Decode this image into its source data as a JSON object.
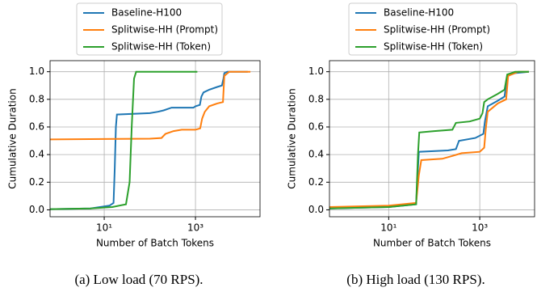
{
  "chart_data": [
    {
      "type": "line",
      "caption": "(a) Low load (70 RPS).",
      "xlabel": "Number of Batch Tokens",
      "ylabel": "Cumulative Duration",
      "xscale": "log",
      "grid": true,
      "legend": "top",
      "xlim": [
        0.65,
        26000
      ],
      "ylim": [
        -0.05,
        1.08
      ],
      "xticks": [
        {
          "value": 10,
          "label": "10¹"
        },
        {
          "value": 1000,
          "label": "10³"
        }
      ],
      "yticks": [
        {
          "value": 0,
          "label": "0.0"
        },
        0.2,
        0.4,
        0.6,
        0.8,
        {
          "value": 1,
          "label": "1.0"
        }
      ],
      "series": [
        {
          "name": "Baseline-H100",
          "color": "#1f77b4",
          "x": [
            0.65,
            5,
            13,
            16,
            17,
            18,
            19,
            100,
            150,
            200,
            300,
            900,
            1000,
            1250,
            1350,
            1500,
            2000,
            3000,
            3800,
            4100,
            4300,
            5000,
            14000
          ],
          "values": [
            0.005,
            0.01,
            0.03,
            0.05,
            0.3,
            0.6,
            0.69,
            0.7,
            0.71,
            0.72,
            0.74,
            0.74,
            0.75,
            0.76,
            0.82,
            0.85,
            0.87,
            0.89,
            0.9,
            0.95,
            0.99,
            1.0,
            1.0
          ]
        },
        {
          "name": "Splitwise-HH (Prompt)",
          "color": "#ff7f0e",
          "x": [
            0.65,
            100,
            180,
            220,
            330,
            500,
            1000,
            1270,
            1400,
            1600,
            2000,
            3000,
            4000,
            4300,
            5500,
            16000
          ],
          "values": [
            0.51,
            0.515,
            0.52,
            0.55,
            0.57,
            0.58,
            0.58,
            0.59,
            0.66,
            0.71,
            0.75,
            0.77,
            0.78,
            0.97,
            1.0,
            1.0
          ]
        },
        {
          "name": "Splitwise-HH (Token)",
          "color": "#2ca02c",
          "x": [
            0.65,
            5,
            15,
            30,
            36,
            40,
            45,
            50,
            1100
          ],
          "values": [
            0.005,
            0.01,
            0.02,
            0.04,
            0.2,
            0.6,
            0.95,
            1.0,
            1.0
          ]
        }
      ]
    },
    {
      "type": "line",
      "caption": "(b) High load (130 RPS).",
      "xlabel": "Number of Batch Tokens",
      "ylabel": "Cumulative Duration",
      "xscale": "log",
      "grid": true,
      "legend": "top",
      "xlim": [
        0.5,
        16000
      ],
      "ylim": [
        -0.05,
        1.08
      ],
      "xticks": [
        {
          "value": 10,
          "label": "10¹"
        },
        {
          "value": 1000,
          "label": "10³"
        }
      ],
      "yticks": [
        {
          "value": 0,
          "label": "0.0"
        },
        0.2,
        0.4,
        0.6,
        0.8,
        {
          "value": 1,
          "label": "1.0"
        }
      ],
      "series": [
        {
          "name": "Baseline-H100",
          "color": "#1f77b4",
          "x": [
            0.5,
            10,
            40,
            44,
            46,
            200,
            300,
            350,
            800,
            1200,
            1300,
            1500,
            2500,
            3500,
            4000,
            6000,
            12000
          ],
          "values": [
            0.01,
            0.02,
            0.04,
            0.3,
            0.42,
            0.43,
            0.44,
            0.5,
            0.52,
            0.55,
            0.64,
            0.75,
            0.79,
            0.82,
            0.97,
            0.99,
            1.0
          ]
        },
        {
          "name": "Splitwise-HH (Prompt)",
          "color": "#ff7f0e",
          "x": [
            0.5,
            10,
            40,
            46,
            52,
            150,
            250,
            400,
            1000,
            1250,
            1350,
            1500,
            2500,
            3800,
            4200,
            7000,
            12000
          ],
          "values": [
            0.02,
            0.03,
            0.05,
            0.25,
            0.36,
            0.37,
            0.39,
            0.41,
            0.42,
            0.45,
            0.58,
            0.71,
            0.77,
            0.8,
            0.97,
            1.0,
            1.0
          ]
        },
        {
          "name": "Splitwise-HH (Token)",
          "color": "#2ca02c",
          "x": [
            0.5,
            10,
            40,
            44,
            47,
            100,
            250,
            300,
            600,
            1000,
            1150,
            1250,
            1500,
            2500,
            3500,
            4000,
            6000,
            12000
          ],
          "values": [
            0.01,
            0.02,
            0.04,
            0.4,
            0.56,
            0.57,
            0.58,
            0.63,
            0.64,
            0.66,
            0.7,
            0.78,
            0.8,
            0.84,
            0.87,
            0.98,
            1.0,
            1.0
          ]
        }
      ]
    }
  ]
}
